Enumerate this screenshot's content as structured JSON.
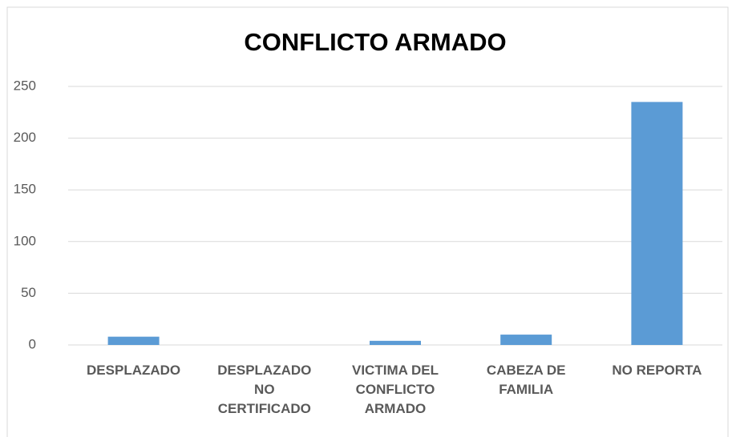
{
  "chart_data": {
    "type": "bar",
    "title": "CONFLICTO ARMADO",
    "categories": [
      "DESPLAZADO",
      "DESPLAZADO NO CERTIFICADO",
      "VICTIMA DEL CONFLICTO ARMADO",
      "CABEZA DE FAMILIA",
      "NO REPORTA"
    ],
    "values": [
      8,
      0,
      4,
      10,
      235
    ],
    "color": "#5b9bd5",
    "ylim": [
      0,
      250
    ],
    "yticks": [
      0,
      50,
      100,
      150,
      200,
      250
    ],
    "grid": true
  }
}
